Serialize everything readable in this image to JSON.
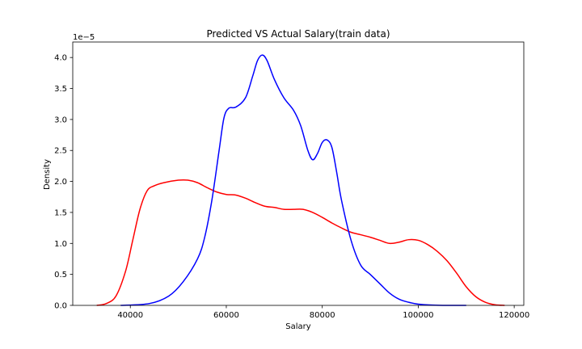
{
  "chart_data": {
    "type": "line",
    "title": "Predicted VS Actual Salary(train data)",
    "xlabel": "Salary",
    "ylabel": "Density",
    "y_offset_label": "1e−5",
    "xlim": [
      28000,
      122000
    ],
    "ylim": [
      0,
      4.25
    ],
    "x_ticks": [
      40000,
      60000,
      80000,
      100000,
      120000
    ],
    "x_tick_labels": [
      "40000",
      "60000",
      "80000",
      "100000",
      "120000"
    ],
    "y_ticks": [
      0,
      0.5,
      1.0,
      1.5,
      2.0,
      2.5,
      3.0,
      3.5,
      4.0
    ],
    "y_tick_labels": [
      "0.0",
      "0.5",
      "1.0",
      "1.5",
      "2.0",
      "2.5",
      "3.0",
      "3.5",
      "4.0"
    ],
    "grid": false,
    "series": [
      {
        "color": "#ff0000",
        "x": [
          33000,
          35000,
          37000,
          39000,
          40500,
          42000,
          43500,
          45000,
          47000,
          50000,
          52000,
          54000,
          56000,
          58000,
          60000,
          62000,
          64000,
          66000,
          68000,
          70000,
          72000,
          74000,
          76000,
          78000,
          80000,
          82000,
          84000,
          86000,
          88000,
          90000,
          92000,
          94000,
          96000,
          98000,
          100000,
          102000,
          104000,
          106000,
          108000,
          110000,
          112000,
          114000,
          116000,
          118000
        ],
        "y": [
          0.0,
          0.03,
          0.15,
          0.55,
          1.05,
          1.55,
          1.85,
          1.93,
          1.98,
          2.02,
          2.02,
          1.98,
          1.9,
          1.83,
          1.79,
          1.78,
          1.73,
          1.66,
          1.6,
          1.58,
          1.55,
          1.55,
          1.55,
          1.5,
          1.42,
          1.33,
          1.25,
          1.18,
          1.14,
          1.1,
          1.05,
          1.0,
          1.02,
          1.06,
          1.05,
          0.98,
          0.87,
          0.72,
          0.52,
          0.3,
          0.14,
          0.05,
          0.01,
          0.0
        ]
      },
      {
        "color": "#0000ff",
        "x": [
          38000,
          44000,
          48000,
          51000,
          54000,
          55500,
          57000,
          58500,
          59500,
          60500,
          62000,
          64000,
          65500,
          66500,
          67500,
          68500,
          70000,
          72000,
          74000,
          75500,
          77000,
          78000,
          79000,
          80000,
          81000,
          82000,
          83000,
          84000,
          86000,
          88000,
          90000,
          92000,
          94000,
          96000,
          98000,
          100000,
          103000,
          106000,
          110000
        ],
        "y": [
          0.0,
          0.03,
          0.15,
          0.38,
          0.75,
          1.1,
          1.7,
          2.5,
          3.02,
          3.18,
          3.2,
          3.35,
          3.7,
          3.95,
          4.04,
          3.95,
          3.65,
          3.35,
          3.15,
          2.9,
          2.5,
          2.35,
          2.45,
          2.63,
          2.67,
          2.55,
          2.15,
          1.7,
          1.05,
          0.65,
          0.5,
          0.35,
          0.2,
          0.1,
          0.05,
          0.02,
          0.005,
          0.0,
          0.0
        ]
      }
    ]
  }
}
